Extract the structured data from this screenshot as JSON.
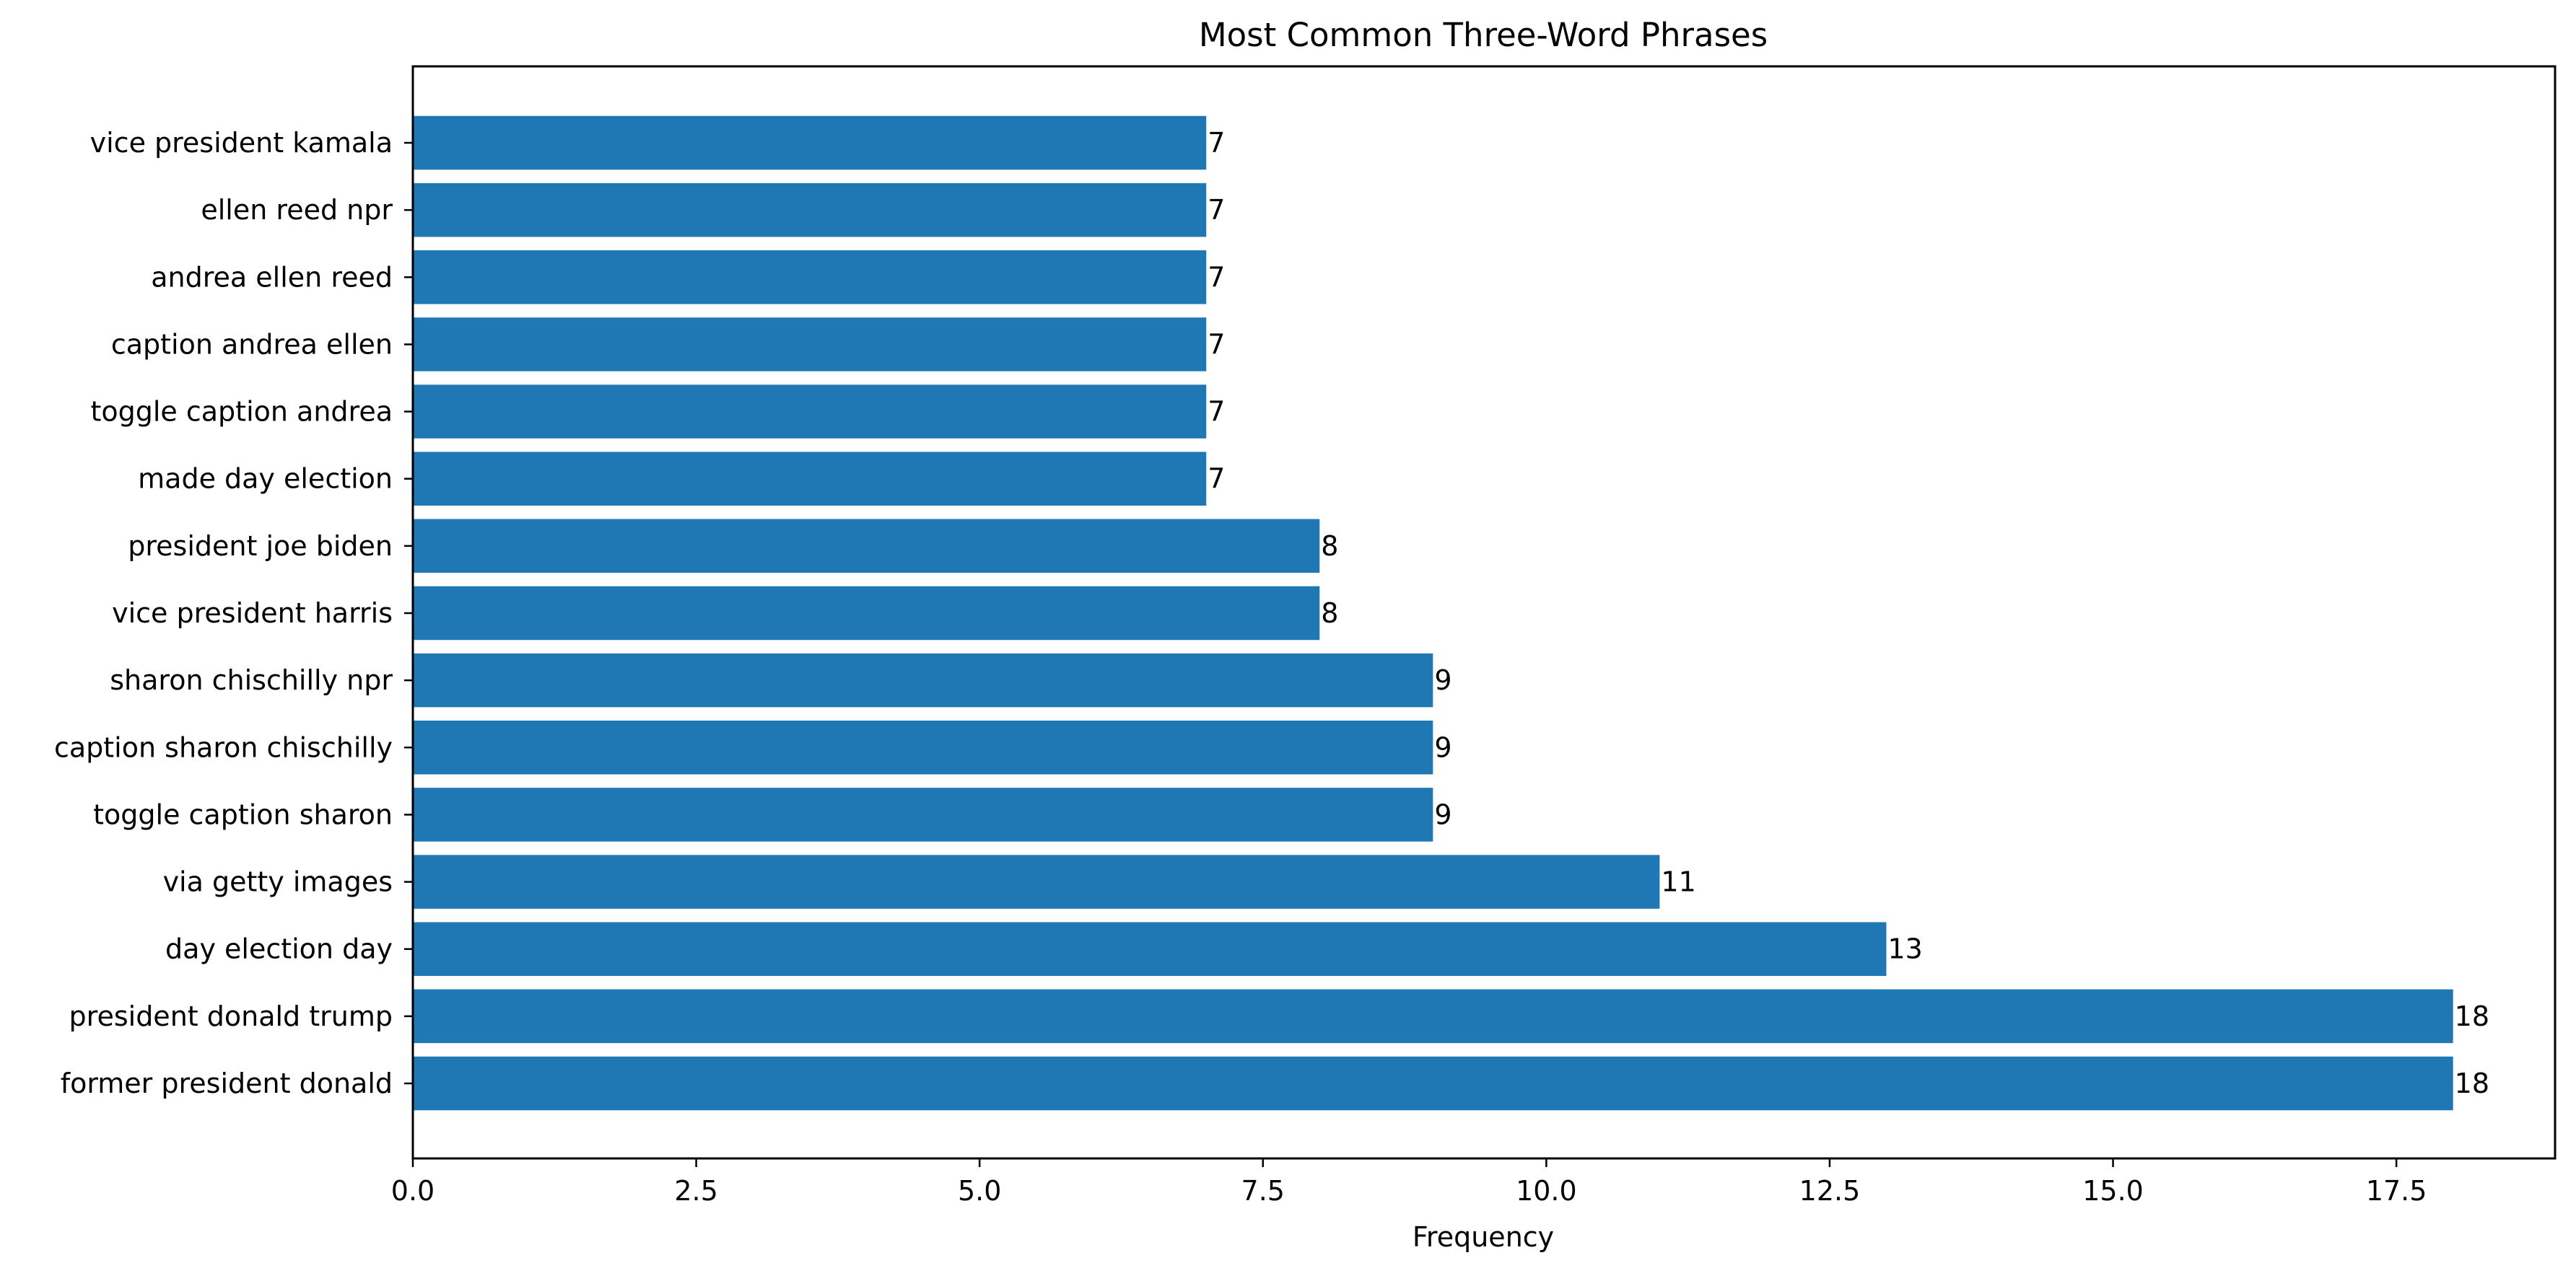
{
  "chart_data": {
    "type": "bar",
    "orientation": "horizontal",
    "title": "Most Common Three-Word Phrases",
    "xlabel": "Frequency",
    "ylabel": "",
    "categories": [
      "former president donald",
      "president donald trump",
      "day election day",
      "via getty images",
      "toggle caption sharon",
      "caption sharon chischilly",
      "sharon chischilly npr",
      "vice president harris",
      "president joe biden",
      "made day election",
      "toggle caption andrea",
      "caption andrea ellen",
      "andrea ellen reed",
      "ellen reed npr",
      "vice president kamala"
    ],
    "values": [
      18,
      18,
      13,
      11,
      9,
      9,
      9,
      8,
      8,
      7,
      7,
      7,
      7,
      7,
      7
    ],
    "value_labels": [
      "18",
      "18",
      "13",
      "11",
      "9",
      "9",
      "9",
      "8",
      "8",
      "7",
      "7",
      "7",
      "7",
      "7",
      "7"
    ],
    "xlim": [
      0,
      18.9
    ],
    "xticks": [
      0,
      2.5,
      5,
      7.5,
      10,
      12.5,
      15,
      17.5
    ],
    "xtick_labels": [
      "0.0",
      "2.5",
      "5.0",
      "7.5",
      "10.0",
      "12.5",
      "15.0",
      "17.5"
    ],
    "bar_color": "#1f77b4",
    "grid": false,
    "legend": "none"
  }
}
